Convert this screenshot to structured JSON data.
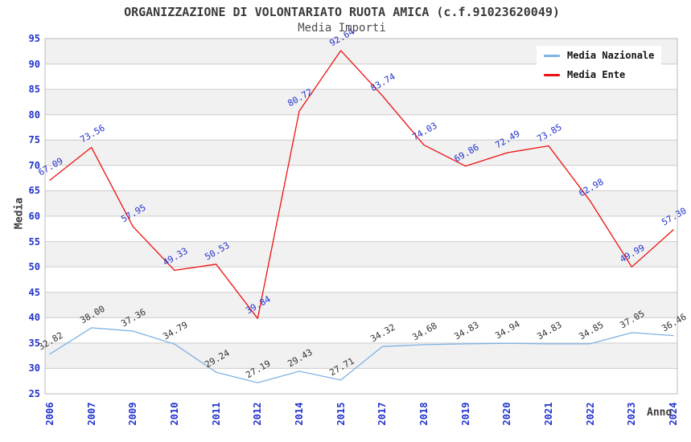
{
  "header": {
    "title": "ORGANIZZAZIONE DI VOLONTARIATO RUOTA AMICA (c.f.91023620049)",
    "subtitle": "Media Importi"
  },
  "chart_data": {
    "type": "line",
    "title": "ORGANIZZAZIONE DI VOLONTARIATO RUOTA AMICA (c.f.91023620049)",
    "subtitle": "Media Importi",
    "xlabel": "Anno",
    "ylabel": "Media",
    "categories": [
      "2006",
      "2007",
      "2009",
      "2010",
      "2011",
      "2012",
      "2014",
      "2015",
      "2017",
      "2018",
      "2019",
      "2020",
      "2021",
      "2022",
      "2023",
      "2024"
    ],
    "series": [
      {
        "name": "Media Nazionale",
        "color": "#7fb2e5",
        "label_color": "#333333",
        "values": [
          32.82,
          38.0,
          37.36,
          34.79,
          29.24,
          27.19,
          29.43,
          27.71,
          34.32,
          34.68,
          34.83,
          34.94,
          34.83,
          34.85,
          37.05,
          36.46
        ]
      },
      {
        "name": "Media Ente",
        "color": "#ee1111",
        "label_color": "#2233cc",
        "values": [
          67.09,
          73.56,
          57.95,
          49.33,
          50.53,
          39.84,
          80.72,
          92.64,
          83.74,
          74.03,
          69.86,
          72.49,
          73.85,
          62.98,
          49.99,
          57.3
        ]
      }
    ],
    "ylim": [
      25,
      95
    ],
    "ytick_step": 5,
    "grid": true,
    "band_fill": "#f1f1f1",
    "grid_color": "#cccccc",
    "border_color": "#bbbbbb",
    "tick_color": "#2233cc",
    "legend_position": "top-right",
    "point_labels_decimals": 2
  }
}
